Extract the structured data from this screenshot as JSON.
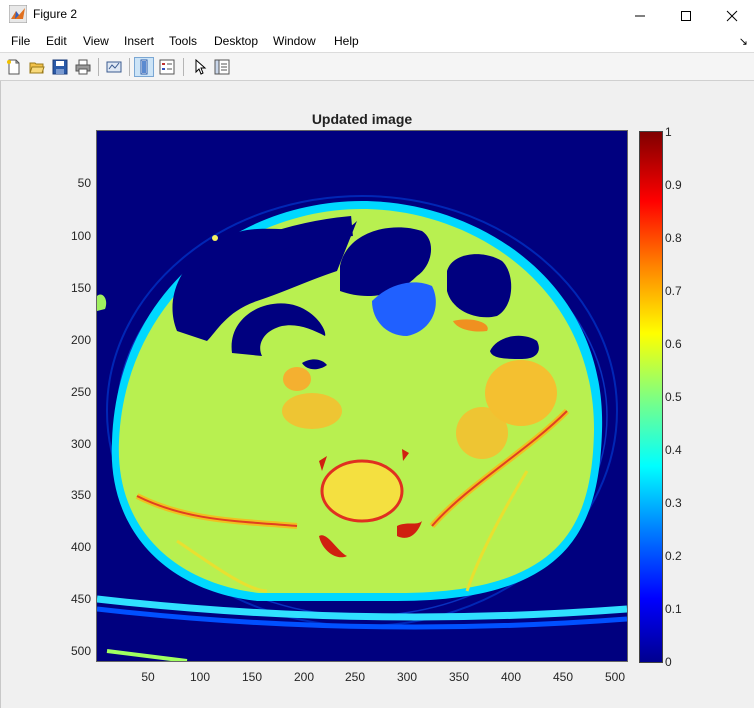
{
  "window": {
    "title": "Figure 2"
  },
  "menu": [
    "File",
    "Edit",
    "View",
    "Insert",
    "Tools",
    "Desktop",
    "Window",
    "Help"
  ],
  "axes": {
    "title": "Updated image",
    "yticks": [
      "50",
      "100",
      "150",
      "200",
      "250",
      "300",
      "350",
      "400",
      "450",
      "500"
    ],
    "xticks": [
      "50",
      "100",
      "150",
      "200",
      "250",
      "300",
      "350",
      "400",
      "450",
      "500"
    ]
  },
  "colorbar": {
    "ticks": [
      "0",
      "0.1",
      "0.2",
      "0.3",
      "0.4",
      "0.5",
      "0.6",
      "0.7",
      "0.8",
      "0.9",
      "1"
    ],
    "colormap": "jet"
  },
  "colors": {
    "background": "#00007f",
    "body": "#b8f050",
    "organ": "#f4c030"
  }
}
